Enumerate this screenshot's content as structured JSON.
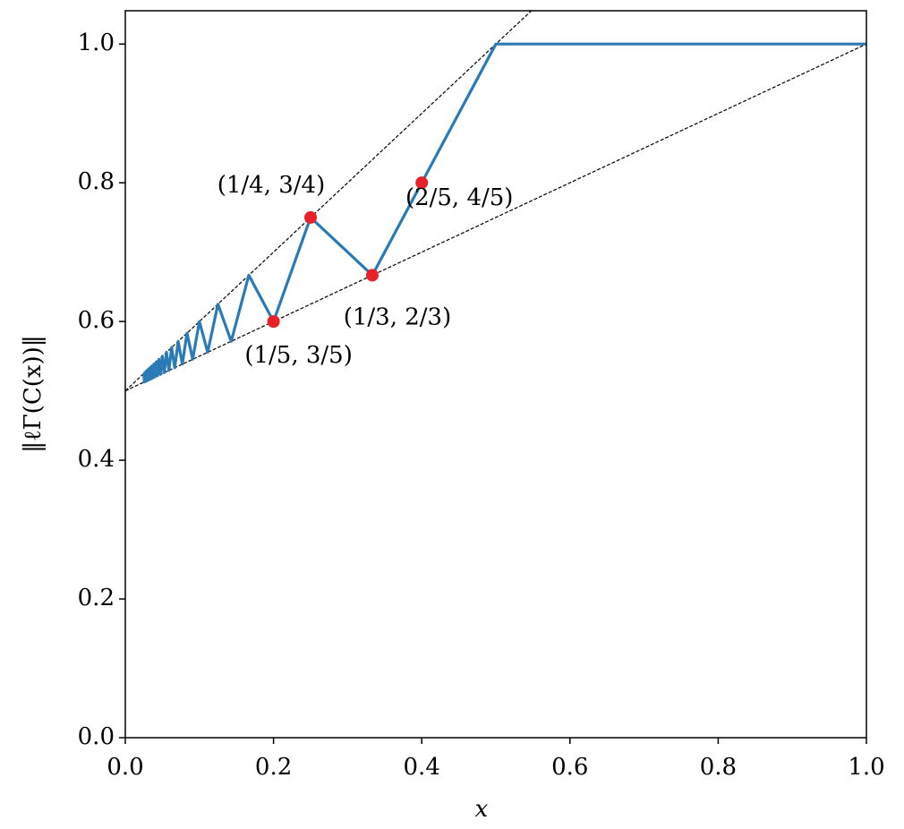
{
  "chart_data": {
    "type": "line",
    "xlabel": "x",
    "ylabel": "‖ℓΓ(C(x))‖",
    "x": [
      0.025,
      0.0256,
      0.0263,
      0.027,
      0.0278,
      0.0286,
      0.0294,
      0.0303,
      0.0313,
      0.0323,
      0.0333,
      0.0345,
      0.0357,
      0.037,
      0.0385,
      0.04,
      0.0417,
      0.0435,
      0.0455,
      0.0476,
      0.05,
      0.0526,
      0.0556,
      0.0588,
      0.0625,
      0.0667,
      0.0714,
      0.0769,
      0.0833,
      0.0909,
      0.1,
      0.1111,
      0.125,
      0.1429,
      0.1667,
      0.2,
      0.25,
      0.3333,
      0.5,
      1.0
    ],
    "values": [
      0.525,
      0.5128,
      0.5263,
      0.5135,
      0.5278,
      0.5143,
      0.5294,
      0.5152,
      0.5313,
      0.5161,
      0.5333,
      0.5172,
      0.5357,
      0.5185,
      0.5385,
      0.52,
      0.5417,
      0.5217,
      0.5455,
      0.5238,
      0.55,
      0.5263,
      0.5556,
      0.5294,
      0.5625,
      0.5333,
      0.5714,
      0.5385,
      0.5833,
      0.5455,
      0.6,
      0.5556,
      0.625,
      0.5714,
      0.6667,
      0.6,
      0.75,
      0.6667,
      1.0,
      1.0
    ],
    "color": "#2a7ab8",
    "reference_lines": [
      {
        "x": [
          0,
          0.55
        ],
        "values": [
          0.5,
          1.05
        ],
        "color": "#000000"
      },
      {
        "x": [
          0,
          1.0
        ],
        "values": [
          0.5,
          1.0
        ],
        "color": "#000000"
      }
    ],
    "points": {
      "x": [
        0.2,
        0.25,
        0.3333,
        0.4
      ],
      "values": [
        0.6,
        0.75,
        0.6667,
        0.8
      ],
      "labels": [
        "(1/5, 3/5)",
        "(1/4, 3/4)",
        "(1/3, 2/3)",
        "(2/5, 4/5)"
      ],
      "color": "#e8202a"
    },
    "xlim": [
      0,
      1.0
    ],
    "ylim": [
      0,
      1.048
    ],
    "xticks": [
      {
        "value": 0,
        "label": "0.0"
      },
      0.2,
      0.4,
      0.6,
      0.8,
      {
        "value": 1.0,
        "label": "1.0"
      }
    ],
    "yticks": [
      {
        "value": 0,
        "label": "0.0"
      },
      0.2,
      0.4,
      0.6,
      0.8,
      {
        "value": 1.0,
        "label": "1.0"
      }
    ]
  }
}
